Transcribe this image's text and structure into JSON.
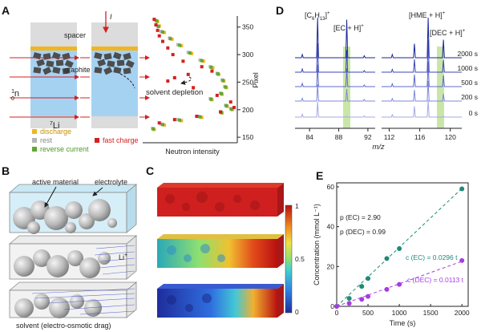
{
  "panel_labels": [
    "A",
    "B",
    "C",
    "D",
    "E"
  ],
  "colors": {
    "discharge": "#f2b51f",
    "rest": "#b5b5b5",
    "reverse_current": "#5fa832",
    "fast_charge": "#d32020",
    "electrolyte_blue": "#a6d2f2",
    "spacer_gray": "#dcdcdc",
    "graphite": "#4d4d4d",
    "EC_series": "#1d8a78",
    "DEC_series": "#a83ce0",
    "highlight": "#c9e6a7",
    "spectra_dark": "#1a2499"
  },
  "panelA": {
    "labels": {
      "spacer": "spacer",
      "graphite": "graphite",
      "current": "I",
      "neutron_pre": "1",
      "neutron_sub": "0",
      "neutron": "n",
      "li_sup": "7",
      "li": "Li",
      "annotation": "solvent depletion"
    },
    "legend": {
      "discharge": "discharge",
      "rest": "rest",
      "reverse_current": "reverse current",
      "fast_charge": "fast charge"
    },
    "profile": {
      "xlabel": "Neutron intensity",
      "ylabel": "Pixel",
      "yticks": [
        "350",
        "300",
        "250",
        "200",
        "150"
      ],
      "ylim": [
        140,
        370
      ]
    }
  },
  "panelB": {
    "labels": {
      "active_material": "active material",
      "electrolyte": "electrolyte",
      "li_ion": "Li",
      "li_sup": "+",
      "drag": "solvent (electro-osmotic drag)"
    }
  },
  "panelC": {
    "colorbar_ticks": [
      "1",
      "0.5",
      "0"
    ]
  },
  "panelD": {
    "peaks": {
      "c6h13_main": "[C",
      "c6h13_sub1": "6",
      "c6h13_mid": "H",
      "c6h13_sub2": "13",
      "c6h13_end": "]",
      "c6h13_sup": "+",
      "ec": "[EC + H]",
      "ec_sup": "+",
      "hme": "[HME + H]",
      "hme_sup": "+",
      "dec": "[DEC + H]",
      "dec_sup": "+"
    },
    "times": [
      "2000 s",
      "1000 s",
      "500 s",
      "200 s",
      "0 s"
    ],
    "xticks_left": [
      "84",
      "88",
      "92"
    ],
    "xticks_right": [
      "112",
      "116",
      "120"
    ],
    "xlabel": "m/z"
  },
  "panelE": {
    "annot": {
      "p_ec": "p (EC) = 2.90",
      "p_dec": "p (DEC) = 0.99",
      "c_ec": "c (EC) = 0.0296 t",
      "c_dec": "c (DEC) = 0.0113 t"
    }
  },
  "chart_data": [
    {
      "type": "scatter",
      "panel": "A",
      "xlabel": "Neutron intensity",
      "ylabel": "Pixel",
      "ylim": [
        140,
        370
      ],
      "series": [
        {
          "name": "discharge",
          "points": [
            [
              0.1,
              360
            ],
            [
              0.12,
              352
            ],
            [
              0.18,
              340
            ],
            [
              0.27,
              328
            ],
            [
              0.38,
              316
            ],
            [
              0.5,
              302
            ],
            [
              0.64,
              288
            ],
            [
              0.75,
              276
            ],
            [
              0.82,
              264
            ],
            [
              0.88,
              252
            ],
            [
              0.91,
              240
            ],
            [
              0.86,
              228
            ],
            [
              0.74,
              218
            ],
            [
              0.92,
              206
            ],
            [
              0.98,
              200
            ],
            [
              0.86,
              194
            ],
            [
              0.62,
              186
            ],
            [
              0.38,
              180
            ],
            [
              0.18,
              172
            ],
            [
              0.06,
              164
            ]
          ]
        },
        {
          "name": "rest",
          "points": [
            [
              0.08,
              362
            ],
            [
              0.1,
              352
            ],
            [
              0.14,
              342
            ],
            [
              0.24,
              330
            ],
            [
              0.34,
              318
            ],
            [
              0.46,
              304
            ],
            [
              0.6,
              290
            ],
            [
              0.72,
              278
            ],
            [
              0.8,
              266
            ],
            [
              0.86,
              254
            ],
            [
              0.89,
              242
            ],
            [
              0.84,
              230
            ],
            [
              0.72,
              220
            ],
            [
              0.9,
              208
            ],
            [
              0.96,
              202
            ],
            [
              0.84,
              196
            ],
            [
              0.58,
              188
            ],
            [
              0.34,
              182
            ],
            [
              0.14,
              174
            ],
            [
              0.04,
              166
            ]
          ]
        },
        {
          "name": "reverse current",
          "points": [
            [
              0.09,
              361
            ],
            [
              0.11,
              351
            ],
            [
              0.16,
              341
            ],
            [
              0.25,
              329
            ],
            [
              0.36,
              317
            ],
            [
              0.48,
              303
            ],
            [
              0.62,
              289
            ],
            [
              0.73,
              277
            ],
            [
              0.81,
              265
            ],
            [
              0.87,
              253
            ],
            [
              0.9,
              241
            ],
            [
              0.85,
              229
            ],
            [
              0.73,
              219
            ],
            [
              0.91,
              207
            ],
            [
              0.97,
              201
            ],
            [
              0.85,
              195
            ],
            [
              0.6,
              187
            ],
            [
              0.36,
              181
            ],
            [
              0.16,
              173
            ],
            [
              0.05,
              165
            ]
          ]
        },
        {
          "name": "fast charge",
          "points": [
            [
              0.06,
              364
            ],
            [
              0.08,
              354
            ],
            [
              0.1,
              344
            ],
            [
              0.12,
              334
            ],
            [
              0.16,
              324
            ],
            [
              0.22,
              312
            ],
            [
              0.28,
              300
            ],
            [
              0.4,
              288
            ],
            [
              0.62,
              278
            ],
            [
              0.74,
              270
            ],
            [
              0.46,
              264
            ],
            [
              0.3,
              258
            ],
            [
              0.22,
              252
            ],
            [
              0.52,
              240
            ],
            [
              0.8,
              226
            ],
            [
              0.96,
              214
            ],
            [
              1.0,
              204
            ],
            [
              0.84,
              196
            ],
            [
              0.56,
              188
            ],
            [
              0.3,
              182
            ],
            [
              0.12,
              176
            ]
          ]
        }
      ]
    },
    {
      "type": "line",
      "panel": "D",
      "xlabel": "m/z",
      "series_names": [
        "2000 s",
        "1000 s",
        "500 s",
        "200 s",
        "0 s"
      ],
      "peaks_left": [
        {
          "x": 83.0,
          "h": [
            0.08,
            0.08,
            0.08,
            0.07,
            0.07
          ]
        },
        {
          "x": 85.1,
          "h": [
            1.0,
            0.72,
            0.55,
            0.42,
            0.38
          ]
        },
        {
          "x": 89.1,
          "h": [
            0.95,
            0.55,
            0.45,
            0.3,
            0.02
          ]
        },
        {
          "x": 91.5,
          "h": [
            0.05,
            0.04,
            0.04,
            0.04,
            0.03
          ]
        }
      ],
      "peaks_right": [
        {
          "x": 112.4,
          "h": [
            0.08,
            0.07,
            0.07,
            0.06,
            0.06
          ]
        },
        {
          "x": 115.3,
          "h": [
            0.35,
            0.32,
            0.3,
            0.28,
            0.27
          ]
        },
        {
          "x": 117.1,
          "h": [
            1.0,
            0.8,
            0.62,
            0.5,
            0.42
          ]
        },
        {
          "x": 119.1,
          "h": [
            0.45,
            0.3,
            0.28,
            0.18,
            0.02
          ]
        }
      ]
    },
    {
      "type": "scatter",
      "panel": "E",
      "xlabel": "Time (s)",
      "ylabel": "Concentration (mmol L⁻¹)",
      "xlim": [
        0,
        2100
      ],
      "ylim": [
        0,
        62
      ],
      "xticks": [
        0,
        500,
        1000,
        1500,
        2000
      ],
      "yticks": [
        0,
        20,
        40,
        60
      ],
      "series": [
        {
          "name": "EC",
          "x": [
            0,
            200,
            400,
            500,
            800,
            1000,
            2000
          ],
          "y": [
            0,
            4,
            10,
            14,
            24,
            29,
            59
          ]
        },
        {
          "name": "DEC",
          "x": [
            0,
            200,
            400,
            500,
            800,
            1000,
            2000
          ],
          "y": [
            0,
            1.5,
            3.5,
            5,
            8.5,
            11,
            23
          ]
        }
      ]
    }
  ]
}
